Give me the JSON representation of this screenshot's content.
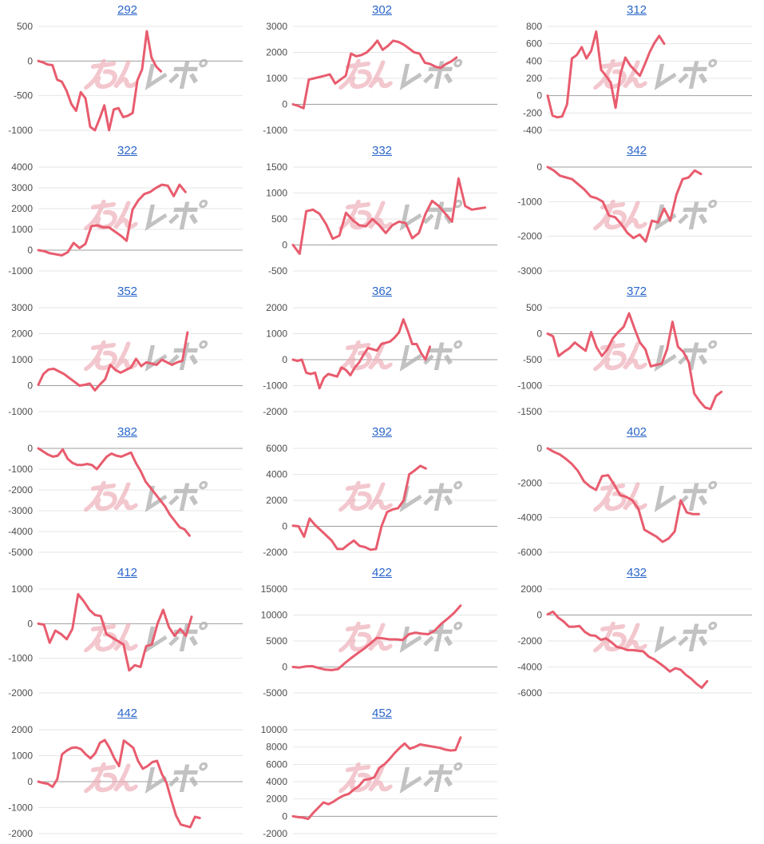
{
  "page": {
    "background": "#ffffff"
  },
  "styles": {
    "line_color": "#e85c6e",
    "grid_color": "#e6e6e6",
    "baseline_color": "#9e9e9e",
    "axis_label_color": "#4d4d4d",
    "title_color": "#2b66c9",
    "watermark_pink": "#edaab4",
    "watermark_gray": "#b3b3b3"
  },
  "watermark": {
    "name": "minrepo-logo"
  },
  "chart_data": [
    {
      "type": "line",
      "title": "292",
      "ymax": 500,
      "ymin": -1000,
      "ticks": [
        500,
        0,
        -500,
        -1000
      ],
      "x_fraction": 0.6,
      "values": [
        0,
        -20,
        -50,
        -60,
        -270,
        -300,
        -430,
        -620,
        -720,
        -450,
        -540,
        -950,
        -1000,
        -830,
        -640,
        -1000,
        -700,
        -680,
        -810,
        -790,
        -750,
        -280,
        -120,
        430,
        50,
        -80,
        -150
      ]
    },
    {
      "type": "line",
      "title": "302",
      "ymax": 3000,
      "ymin": -1000,
      "ticks": [
        3000,
        2000,
        1000,
        0,
        -1000
      ],
      "x_fraction": 0.8,
      "values": [
        0,
        -60,
        -150,
        950,
        1000,
        1050,
        1100,
        1150,
        800,
        950,
        1100,
        1950,
        1850,
        1900,
        2000,
        2200,
        2450,
        2100,
        2250,
        2450,
        2400,
        2300,
        2150,
        2000,
        1950,
        1600,
        1550,
        1450,
        1400,
        1550,
        1650,
        1800
      ]
    },
    {
      "type": "line",
      "title": "312",
      "ymax": 800,
      "ymin": -400,
      "ticks": [
        800,
        600,
        400,
        200,
        0,
        -200,
        -400
      ],
      "x_fraction": 0.57,
      "values": [
        0,
        -230,
        -250,
        -240,
        -100,
        430,
        470,
        560,
        430,
        520,
        740,
        300,
        230,
        150,
        -140,
        250,
        440,
        350,
        290,
        230,
        360,
        500,
        610,
        690,
        600
      ]
    },
    {
      "type": "line",
      "title": "322",
      "ymax": 4000,
      "ymin": -1000,
      "ticks": [
        4000,
        3000,
        2000,
        1000,
        0,
        -1000
      ],
      "x_fraction": 0.72,
      "values": [
        0,
        -50,
        -150,
        -200,
        -250,
        -100,
        350,
        100,
        300,
        1150,
        1200,
        1100,
        1100,
        900,
        700,
        450,
        1950,
        2400,
        2700,
        2800,
        3000,
        3150,
        3100,
        2600,
        3150,
        2800
      ]
    },
    {
      "type": "line",
      "title": "332",
      "ymax": 1500,
      "ymin": -500,
      "ticks": [
        1500,
        1000,
        500,
        0,
        -500
      ],
      "x_fraction": 0.94,
      "values": [
        0,
        -170,
        650,
        680,
        600,
        400,
        120,
        180,
        620,
        480,
        380,
        360,
        500,
        380,
        230,
        380,
        450,
        420,
        130,
        230,
        600,
        850,
        750,
        600,
        450,
        1280,
        750,
        680,
        700,
        720
      ]
    },
    {
      "type": "line",
      "title": "342",
      "ymax": 0,
      "ymin": -3000,
      "ticks": [
        0,
        -1000,
        -2000,
        -3000
      ],
      "x_fraction": 0.75,
      "values": [
        0,
        -100,
        -250,
        -300,
        -350,
        -500,
        -650,
        -850,
        -900,
        -1000,
        -1400,
        -1450,
        -1650,
        -1900,
        -2050,
        -1950,
        -2150,
        -1550,
        -1600,
        -1200,
        -1550,
        -800,
        -350,
        -300,
        -100,
        -200
      ]
    },
    {
      "type": "line",
      "title": "352",
      "ymax": 3000,
      "ymin": -1000,
      "ticks": [
        3000,
        2000,
        1000,
        0,
        -1000
      ],
      "x_fraction": 0.73,
      "values": [
        30,
        450,
        620,
        650,
        550,
        450,
        300,
        150,
        0,
        30,
        80,
        -180,
        50,
        250,
        800,
        600,
        500,
        600,
        700,
        1030,
        750,
        900,
        850,
        800,
        1000,
        900,
        800,
        900,
        950,
        2050
      ]
    },
    {
      "type": "line",
      "title": "362",
      "ymax": 2000,
      "ymin": -2000,
      "ticks": [
        2000,
        1000,
        0,
        -1000,
        -2000
      ],
      "x_fraction": 0.67,
      "values": [
        0,
        -50,
        0,
        -500,
        -550,
        -500,
        -1100,
        -700,
        -550,
        -600,
        -650,
        -300,
        -400,
        -600,
        -300,
        -100,
        200,
        450,
        400,
        350,
        600,
        650,
        700,
        850,
        1050,
        1550,
        1100,
        600,
        600,
        250,
        0,
        500
      ]
    },
    {
      "type": "line",
      "title": "372",
      "ymax": 500,
      "ymin": -1500,
      "ticks": [
        500,
        0,
        -500,
        -1000,
        -1500
      ],
      "x_fraction": 0.85,
      "values": [
        0,
        -50,
        -430,
        -350,
        -280,
        -170,
        -250,
        -330,
        30,
        -260,
        -430,
        -300,
        -90,
        30,
        130,
        390,
        100,
        -170,
        -300,
        -630,
        -600,
        -580,
        -300,
        230,
        -250,
        -350,
        -550,
        -1150,
        -1300,
        -1420,
        -1450,
        -1200,
        -1120
      ]
    },
    {
      "type": "line",
      "title": "382",
      "ymax": 0,
      "ymin": -5000,
      "ticks": [
        0,
        -1000,
        -2000,
        -3000,
        -4000,
        -5000
      ],
      "x_fraction": 0.74,
      "values": [
        0,
        -150,
        -300,
        -400,
        -350,
        -50,
        -500,
        -700,
        -800,
        -800,
        -750,
        -800,
        -1000,
        -700,
        -400,
        -250,
        -350,
        -400,
        -300,
        -200,
        -700,
        -1100,
        -1600,
        -1900,
        -2200,
        -2500,
        -2800,
        -3200,
        -3500,
        -3800,
        -3900,
        -4200
      ]
    },
    {
      "type": "line",
      "title": "392",
      "ymax": 6000,
      "ymin": -2000,
      "ticks": [
        6000,
        4000,
        2000,
        0,
        -2000
      ],
      "x_fraction": 0.65,
      "values": [
        50,
        0,
        -800,
        600,
        100,
        -300,
        -700,
        -1100,
        -1750,
        -1750,
        -1400,
        -1100,
        -1500,
        -1600,
        -1800,
        -1750,
        0,
        1100,
        1300,
        1400,
        2000,
        4000,
        4300,
        4650,
        4450
      ]
    },
    {
      "type": "line",
      "title": "402",
      "ymax": 0,
      "ymin": -6000,
      "ticks": [
        0,
        -2000,
        -4000,
        -6000
      ],
      "x_fraction": 0.74,
      "values": [
        0,
        -200,
        -350,
        -600,
        -900,
        -1300,
        -1900,
        -2200,
        -2400,
        -1600,
        -1550,
        -2100,
        -2700,
        -2800,
        -3000,
        -3500,
        -4700,
        -4900,
        -5100,
        -5400,
        -5200,
        -4800,
        -3000,
        -3700,
        -3800,
        -3800
      ]
    },
    {
      "type": "line",
      "title": "412",
      "ymax": 1000,
      "ymin": -2000,
      "ticks": [
        1000,
        0,
        -1000,
        -2000
      ],
      "x_fraction": 0.75,
      "values": [
        0,
        -30,
        -550,
        -200,
        -300,
        -450,
        -150,
        850,
        650,
        400,
        250,
        220,
        -300,
        -400,
        -500,
        -600,
        -1350,
        -1200,
        -1250,
        -650,
        -600,
        0,
        400,
        -100,
        -350,
        -150,
        -350,
        200
      ]
    },
    {
      "type": "line",
      "title": "422",
      "ymax": 15000,
      "ymin": -5000,
      "ticks": [
        15000,
        10000,
        5000,
        0,
        -5000
      ],
      "x_fraction": 0.82,
      "values": [
        0,
        -100,
        100,
        150,
        -200,
        -500,
        -600,
        -400,
        700,
        1700,
        2600,
        3500,
        4500,
        5600,
        5500,
        5300,
        5300,
        5200,
        6300,
        6600,
        6400,
        6300,
        7000,
        8300,
        9300,
        10400,
        11800
      ]
    },
    {
      "type": "line",
      "title": "432",
      "ymax": 2000,
      "ymin": -6000,
      "ticks": [
        2000,
        0,
        -2000,
        -4000,
        -6000
      ],
      "x_fraction": 0.78,
      "values": [
        50,
        250,
        -200,
        -500,
        -900,
        -900,
        -850,
        -1300,
        -1550,
        -1600,
        -1900,
        -1800,
        -2100,
        -2450,
        -2550,
        -2700,
        -2700,
        -2750,
        -2800,
        -3200,
        -3400,
        -3700,
        -4000,
        -4350,
        -4100,
        -4200,
        -4600,
        -4900,
        -5300,
        -5600,
        -5100
      ]
    },
    {
      "type": "line",
      "title": "442",
      "ymax": 2000,
      "ymin": -2000,
      "ticks": [
        2000,
        1000,
        0,
        -1000,
        -2000
      ],
      "x_fraction": 0.79,
      "values": [
        0,
        -50,
        -80,
        -200,
        100,
        1050,
        1200,
        1300,
        1320,
        1250,
        1050,
        900,
        1100,
        1500,
        1600,
        1300,
        900,
        600,
        1580,
        1450,
        1300,
        800,
        500,
        600,
        750,
        800,
        300,
        -50,
        -700,
        -1300,
        -1650,
        -1700,
        -1750,
        -1350,
        -1400
      ]
    },
    {
      "type": "line",
      "title": "452",
      "ymax": 10000,
      "ymin": -2000,
      "ticks": [
        10000,
        8000,
        6000,
        4000,
        2000,
        0,
        -2000
      ],
      "x_fraction": 0.82,
      "values": [
        0,
        -100,
        -150,
        -300,
        400,
        1000,
        1600,
        1400,
        1700,
        2100,
        2400,
        2600,
        3100,
        3500,
        4200,
        4300,
        4500,
        5600,
        6000,
        6600,
        7300,
        7900,
        8400,
        7800,
        8000,
        8300,
        8200,
        8100,
        8000,
        7900,
        7700,
        7600,
        7650,
        9100
      ]
    }
  ]
}
